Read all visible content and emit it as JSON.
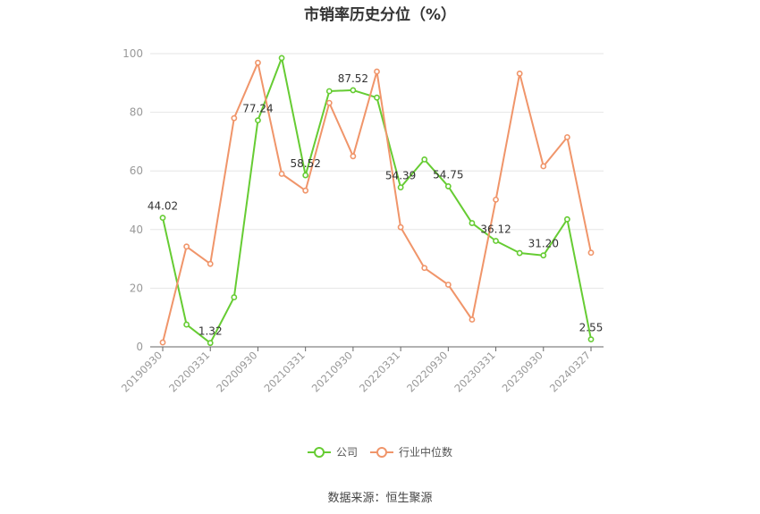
{
  "title": "市销率历史分位（%）",
  "source_text": "数据来源：恒生聚源",
  "colors": {
    "company": "#66cc33",
    "industry": "#f0956a",
    "grid": "#e6e6e6",
    "axis": "#999999"
  },
  "chart_data": {
    "type": "line",
    "title": "市销率历史分位（%）",
    "xlabel": "",
    "ylabel": "",
    "ylim": [
      0,
      100
    ],
    "yticks": [
      0,
      20,
      40,
      60,
      80,
      100
    ],
    "grid": true,
    "legend_position": "bottom",
    "x": [
      "20190930",
      "20191231",
      "20200331",
      "20200630",
      "20200930",
      "20201231",
      "20210331",
      "20210630",
      "20210930",
      "20211231",
      "20220331",
      "20220630",
      "20220930",
      "20221231",
      "20230331",
      "20230630",
      "20230930",
      "20231231",
      "20240327"
    ],
    "xtick_labels": [
      "20190930",
      "20200331",
      "20200930",
      "20210331",
      "20210930",
      "20220331",
      "20220930",
      "20230331",
      "20230930",
      "20240327"
    ],
    "series": [
      {
        "name": "公司",
        "color": "#66cc33",
        "values": [
          44.02,
          7.6,
          1.32,
          16.9,
          77.24,
          98.5,
          58.52,
          87.2,
          87.52,
          85.0,
          54.39,
          63.9,
          54.75,
          42.2,
          36.12,
          32.0,
          31.2,
          43.5,
          2.55
        ],
        "labels": [
          "44.02",
          "",
          "1.32",
          "",
          "77.24",
          "",
          "58.52",
          "",
          "87.52",
          "",
          "54.39",
          "",
          "54.75",
          "",
          "36.12",
          "",
          "31.20",
          "",
          "2.55"
        ]
      },
      {
        "name": "行业中位数",
        "color": "#f0956a",
        "values": [
          1.5,
          34.2,
          28.3,
          78.0,
          96.9,
          59.0,
          53.3,
          83.2,
          65.0,
          93.9,
          40.8,
          26.9,
          21.2,
          9.3,
          50.2,
          93.2,
          61.6,
          71.5,
          32.1
        ],
        "labels": []
      }
    ]
  }
}
